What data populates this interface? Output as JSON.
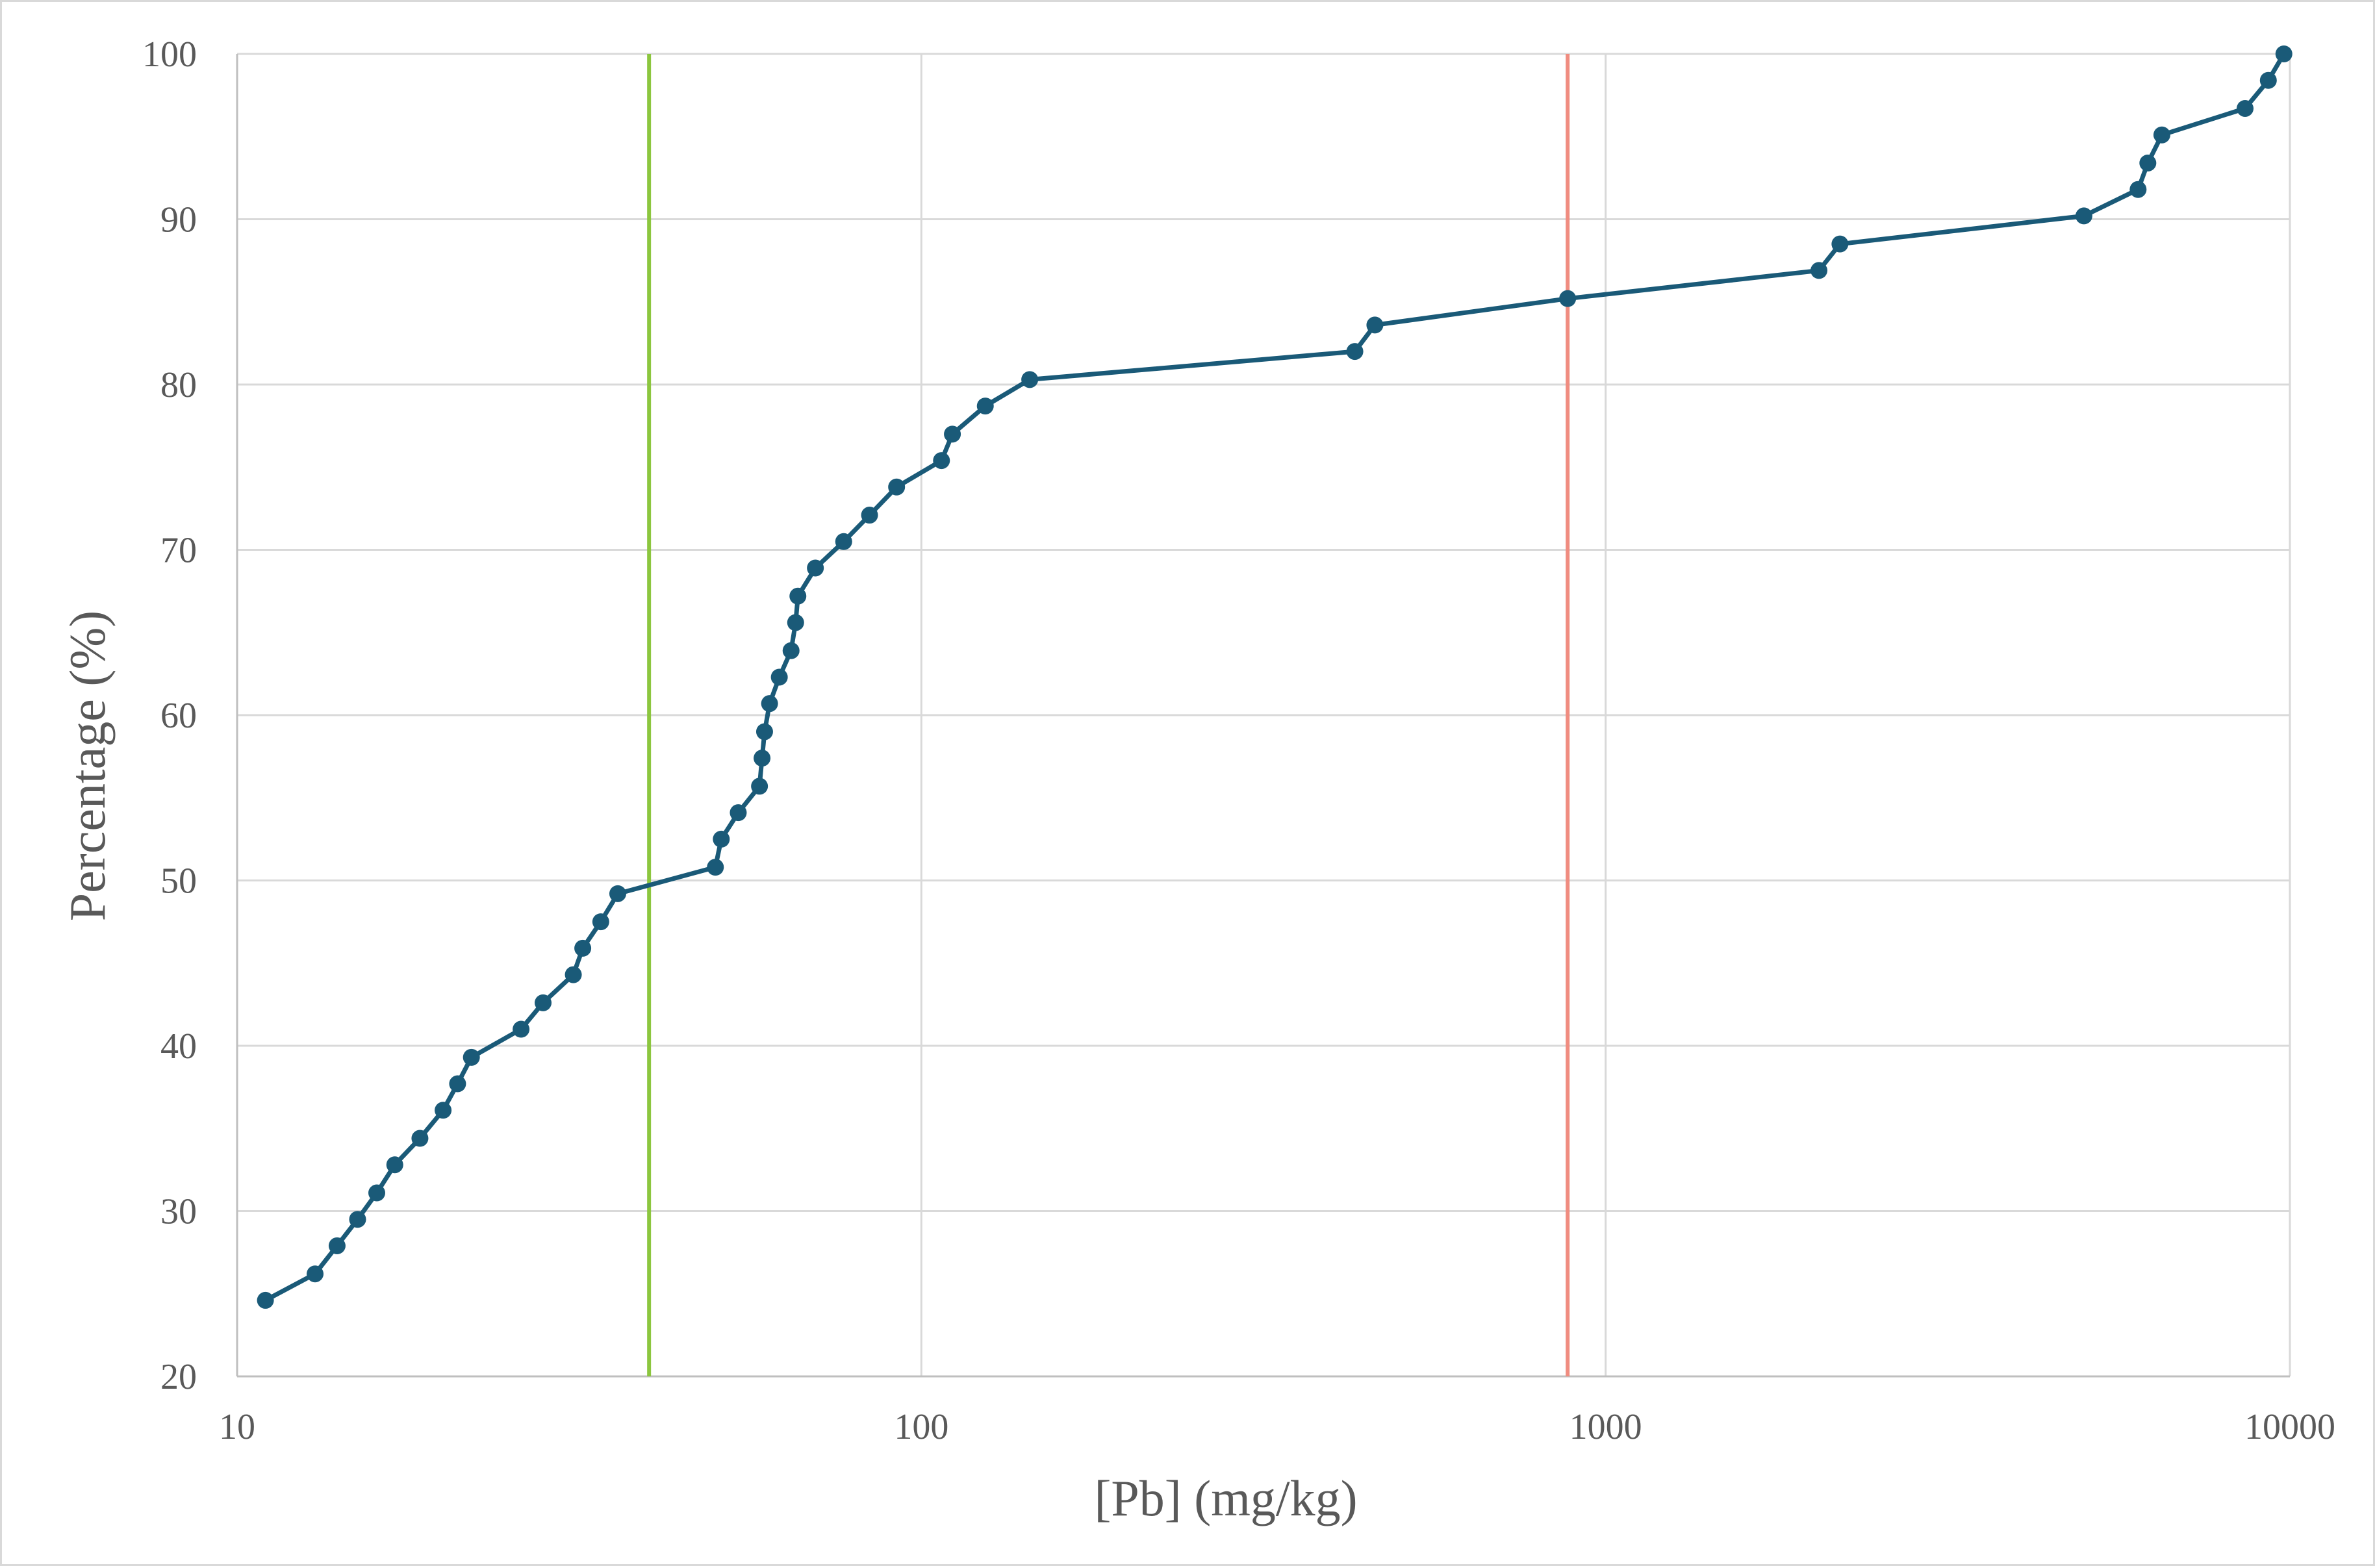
{
  "chart_data": {
    "type": "line",
    "title": "",
    "xlabel": "[Pb] (mg/kg)",
    "ylabel": "Percentage (%)",
    "x_scale": "log",
    "xlim": [
      10,
      10000
    ],
    "ylim": [
      20,
      100
    ],
    "x_ticks": [
      10,
      100,
      1000,
      10000
    ],
    "x_tick_labels": [
      "10",
      "100",
      "1000",
      "10000"
    ],
    "y_ticks": [
      20,
      30,
      40,
      50,
      60,
      70,
      80,
      90,
      100
    ],
    "y_tick_labels": [
      "20",
      "30",
      "40",
      "50",
      "60",
      "70",
      "80",
      "90",
      "100"
    ],
    "grid": true,
    "legend": "none",
    "series": [
      {
        "color": "#1a5a78",
        "marker": "circle",
        "x": [
          11,
          13,
          14,
          15,
          16,
          17,
          18.5,
          20,
          21,
          22,
          26,
          28,
          31,
          32,
          34,
          36,
          50,
          51,
          54,
          58,
          58.5,
          59,
          60,
          62,
          64.5,
          65.5,
          66,
          70,
          77,
          84,
          92,
          107,
          111,
          124,
          144,
          430,
          460,
          880,
          2050,
          2200,
          5000,
          6000,
          6200,
          6500,
          8600,
          9300,
          9800
        ],
        "y": [
          24.6,
          26.2,
          27.9,
          29.5,
          31.1,
          32.8,
          34.4,
          36.1,
          37.7,
          39.3,
          41.0,
          42.6,
          44.3,
          45.9,
          47.5,
          49.2,
          50.8,
          52.5,
          54.1,
          55.7,
          57.4,
          59.0,
          60.7,
          62.3,
          63.9,
          65.6,
          67.2,
          68.9,
          70.5,
          72.1,
          73.8,
          75.4,
          77.0,
          78.7,
          80.3,
          82.0,
          83.6,
          85.2,
          86.9,
          88.5,
          90.2,
          91.8,
          93.4,
          95.1,
          96.7,
          98.4,
          100.0
        ]
      }
    ],
    "reference_lines": [
      {
        "x": 40,
        "color": "#8cc63f"
      },
      {
        "x": 880,
        "color": "#f08c80"
      }
    ]
  }
}
